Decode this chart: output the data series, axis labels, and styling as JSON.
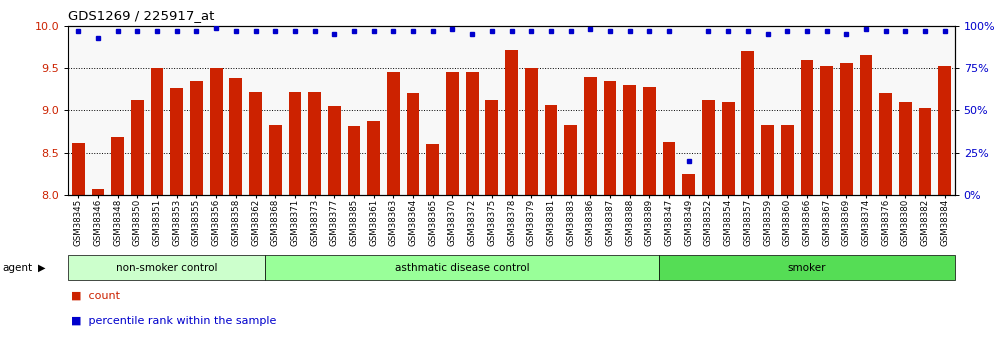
{
  "title": "GDS1269 / 225917_at",
  "samples": [
    "GSM38345",
    "GSM38346",
    "GSM38348",
    "GSM38350",
    "GSM38351",
    "GSM38353",
    "GSM38355",
    "GSM38356",
    "GSM38358",
    "GSM38362",
    "GSM38368",
    "GSM38371",
    "GSM38373",
    "GSM38377",
    "GSM38385",
    "GSM38361",
    "GSM38363",
    "GSM38364",
    "GSM38365",
    "GSM38370",
    "GSM38372",
    "GSM38375",
    "GSM38378",
    "GSM38379",
    "GSM38381",
    "GSM38383",
    "GSM38386",
    "GSM38387",
    "GSM38388",
    "GSM38389",
    "GSM38347",
    "GSM38349",
    "GSM38352",
    "GSM38354",
    "GSM38357",
    "GSM38359",
    "GSM38360",
    "GSM38366",
    "GSM38367",
    "GSM38369",
    "GSM38374",
    "GSM38376",
    "GSM38380",
    "GSM38382",
    "GSM38384"
  ],
  "counts": [
    8.62,
    8.07,
    8.68,
    9.12,
    9.5,
    9.27,
    9.35,
    9.5,
    9.38,
    9.22,
    8.83,
    9.22,
    9.22,
    9.05,
    8.82,
    8.87,
    9.45,
    9.2,
    8.6,
    9.45,
    9.45,
    9.12,
    9.72,
    9.5,
    9.06,
    8.83,
    9.4,
    9.35,
    9.3,
    9.28,
    8.63,
    8.25,
    9.12,
    9.1,
    9.7,
    8.83,
    8.83,
    9.6,
    9.52,
    9.56,
    9.65,
    9.2,
    9.1,
    9.03,
    9.52
  ],
  "percentiles": [
    97,
    93,
    97,
    97,
    97,
    97,
    97,
    99,
    97,
    97,
    97,
    97,
    97,
    95,
    97,
    97,
    97,
    97,
    97,
    98,
    95,
    97,
    97,
    97,
    97,
    97,
    98,
    97,
    97,
    97,
    97,
    20,
    97,
    97,
    97,
    95,
    97,
    97,
    97,
    95,
    98,
    97,
    97,
    97,
    97
  ],
  "group_ends": [
    10,
    30,
    45
  ],
  "groups": [
    {
      "label": "non-smoker control",
      "start": 0,
      "end": 10,
      "color": "#ccffcc"
    },
    {
      "label": "asthmatic disease control",
      "start": 10,
      "end": 30,
      "color": "#99ff99"
    },
    {
      "label": "smoker",
      "start": 30,
      "end": 45,
      "color": "#55dd55"
    }
  ],
  "ylim_left": [
    8.0,
    10.0
  ],
  "ylim_right": [
    0,
    100
  ],
  "yticks_left": [
    8.0,
    8.5,
    9.0,
    9.5,
    10.0
  ],
  "yticks_right": [
    0,
    25,
    50,
    75,
    100
  ],
  "bar_color": "#cc2200",
  "dot_color": "#0000cc",
  "plot_bg": "#f8f8f8",
  "grid_color": "#333333"
}
